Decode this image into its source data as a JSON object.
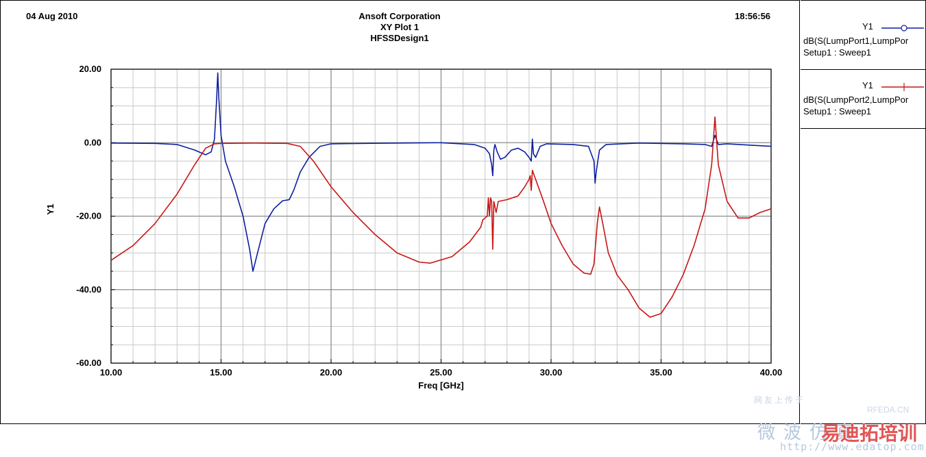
{
  "header": {
    "date": "04 Aug 2010",
    "time": "18:56:56",
    "company": "Ansoft Corporation",
    "plot_name": "XY Plot 1",
    "design": "HFSSDesign1"
  },
  "legend": [
    {
      "y_label": "Y1",
      "line1": "dB(S(LumpPort1,LumpPor",
      "line2": "Setup1 : Sweep1",
      "color": "#0b1e9e",
      "marker": "circle"
    },
    {
      "y_label": "Y1",
      "line1": "dB(S(LumpPort2,LumpPor",
      "line2": "Setup1 : Sweep1",
      "color": "#c81414",
      "marker": "plus"
    }
  ],
  "watermark": {
    "top": "网友上传于",
    "site_code": "RFEDA.CN",
    "chars": "微波仿真",
    "brand": "易迪拓培训",
    "url": "http://www.edatop.com"
  },
  "chart_data": {
    "type": "line",
    "title": "XY Plot 1",
    "xlabel": "Freq [GHz]",
    "ylabel": "Y1",
    "xlim": [
      10,
      40
    ],
    "ylim": [
      -60,
      20
    ],
    "x_ticks": [
      "10.00",
      "15.00",
      "20.00",
      "25.00",
      "30.00",
      "35.00",
      "40.00"
    ],
    "y_ticks": [
      "20.00",
      "0.00",
      "-20.00",
      "-40.00",
      "-60.00"
    ],
    "grid": true,
    "legend_position": "right",
    "series": [
      {
        "name": "dB(S(LumpPort1,LumpPor",
        "color": "#0b1e9e",
        "points": [
          [
            10.0,
            -0.1
          ],
          [
            12.0,
            -0.2
          ],
          [
            13.0,
            -0.5
          ],
          [
            13.8,
            -2.0
          ],
          [
            14.3,
            -3.3
          ],
          [
            14.55,
            -2.5
          ],
          [
            14.7,
            1.0
          ],
          [
            14.8,
            12.0
          ],
          [
            14.85,
            19.0
          ],
          [
            14.9,
            12.0
          ],
          [
            15.0,
            2.0
          ],
          [
            15.2,
            -5.0
          ],
          [
            15.6,
            -12.0
          ],
          [
            16.0,
            -20.0
          ],
          [
            16.3,
            -29.0
          ],
          [
            16.45,
            -35.0
          ],
          [
            16.7,
            -29.0
          ],
          [
            17.0,
            -22.0
          ],
          [
            17.4,
            -18.0
          ],
          [
            17.8,
            -15.8
          ],
          [
            18.1,
            -15.5
          ],
          [
            18.3,
            -13.0
          ],
          [
            18.6,
            -8.0
          ],
          [
            19.0,
            -4.0
          ],
          [
            19.5,
            -1.0
          ],
          [
            20.0,
            -0.3
          ],
          [
            23.0,
            -0.1
          ],
          [
            25.0,
            0.0
          ],
          [
            26.5,
            -0.5
          ],
          [
            27.0,
            -1.5
          ],
          [
            27.2,
            -3.0
          ],
          [
            27.3,
            -6.0
          ],
          [
            27.35,
            -9.0
          ],
          [
            27.4,
            -2.0
          ],
          [
            27.45,
            -0.5
          ],
          [
            27.55,
            -2.5
          ],
          [
            27.7,
            -4.5
          ],
          [
            27.9,
            -4.0
          ],
          [
            28.2,
            -2.0
          ],
          [
            28.5,
            -1.5
          ],
          [
            28.8,
            -2.5
          ],
          [
            29.0,
            -4.0
          ],
          [
            29.1,
            -5.0
          ],
          [
            29.15,
            1.0
          ],
          [
            29.2,
            -3.0
          ],
          [
            29.3,
            -4.0
          ],
          [
            29.5,
            -1.0
          ],
          [
            29.8,
            -0.3
          ],
          [
            31.0,
            -0.5
          ],
          [
            31.7,
            -1.0
          ],
          [
            31.95,
            -5.0
          ],
          [
            32.0,
            -11.0
          ],
          [
            32.05,
            -8.0
          ],
          [
            32.2,
            -2.0
          ],
          [
            32.5,
            -0.5
          ],
          [
            34.0,
            -0.1
          ],
          [
            36.0,
            -0.3
          ],
          [
            37.0,
            -0.5
          ],
          [
            37.3,
            -1.0
          ],
          [
            37.45,
            2.0
          ],
          [
            37.6,
            -0.5
          ],
          [
            38.0,
            -0.3
          ],
          [
            40.0,
            -1.0
          ]
        ]
      },
      {
        "name": "dB(S(LumpPort2,LumpPor",
        "color": "#c81414",
        "points": [
          [
            10.0,
            -32.0
          ],
          [
            11.0,
            -28.0
          ],
          [
            12.0,
            -22.0
          ],
          [
            13.0,
            -14.0
          ],
          [
            13.8,
            -6.0
          ],
          [
            14.3,
            -1.5
          ],
          [
            14.7,
            -0.3
          ],
          [
            15.0,
            -0.2
          ],
          [
            16.5,
            -0.1
          ],
          [
            18.0,
            -0.2
          ],
          [
            18.6,
            -1.0
          ],
          [
            19.2,
            -5.0
          ],
          [
            20.0,
            -12.0
          ],
          [
            21.0,
            -19.0
          ],
          [
            22.0,
            -25.0
          ],
          [
            23.0,
            -30.0
          ],
          [
            24.0,
            -32.5
          ],
          [
            24.5,
            -32.8
          ],
          [
            25.5,
            -31.0
          ],
          [
            26.3,
            -27.0
          ],
          [
            26.8,
            -23.0
          ],
          [
            26.9,
            -21.0
          ],
          [
            27.0,
            -20.5
          ],
          [
            27.1,
            -20.0
          ],
          [
            27.15,
            -15.0
          ],
          [
            27.2,
            -20.0
          ],
          [
            27.25,
            -15.0
          ],
          [
            27.3,
            -16.0
          ],
          [
            27.35,
            -29.0
          ],
          [
            27.4,
            -16.0
          ],
          [
            27.5,
            -19.0
          ],
          [
            27.6,
            -16.0
          ],
          [
            28.0,
            -15.5
          ],
          [
            28.5,
            -14.5
          ],
          [
            28.8,
            -12.0
          ],
          [
            29.0,
            -10.0
          ],
          [
            29.05,
            -9.0
          ],
          [
            29.1,
            -13.0
          ],
          [
            29.15,
            -7.5
          ],
          [
            29.3,
            -10.0
          ],
          [
            29.6,
            -15.0
          ],
          [
            30.0,
            -22.0
          ],
          [
            30.5,
            -28.0
          ],
          [
            31.0,
            -33.0
          ],
          [
            31.5,
            -35.5
          ],
          [
            31.8,
            -35.8
          ],
          [
            31.95,
            -33.0
          ],
          [
            32.1,
            -22.0
          ],
          [
            32.2,
            -17.5
          ],
          [
            32.35,
            -22.0
          ],
          [
            32.6,
            -30.0
          ],
          [
            33.0,
            -36.0
          ],
          [
            33.5,
            -40.0
          ],
          [
            34.0,
            -45.0
          ],
          [
            34.5,
            -47.5
          ],
          [
            35.0,
            -46.5
          ],
          [
            35.5,
            -42.0
          ],
          [
            36.0,
            -36.0
          ],
          [
            36.5,
            -28.0
          ],
          [
            37.0,
            -18.0
          ],
          [
            37.3,
            -6.0
          ],
          [
            37.45,
            7.0
          ],
          [
            37.6,
            -6.0
          ],
          [
            38.0,
            -16.0
          ],
          [
            38.5,
            -20.5
          ],
          [
            39.0,
            -20.5
          ],
          [
            39.5,
            -19.0
          ],
          [
            40.0,
            -18.0
          ]
        ]
      }
    ]
  }
}
